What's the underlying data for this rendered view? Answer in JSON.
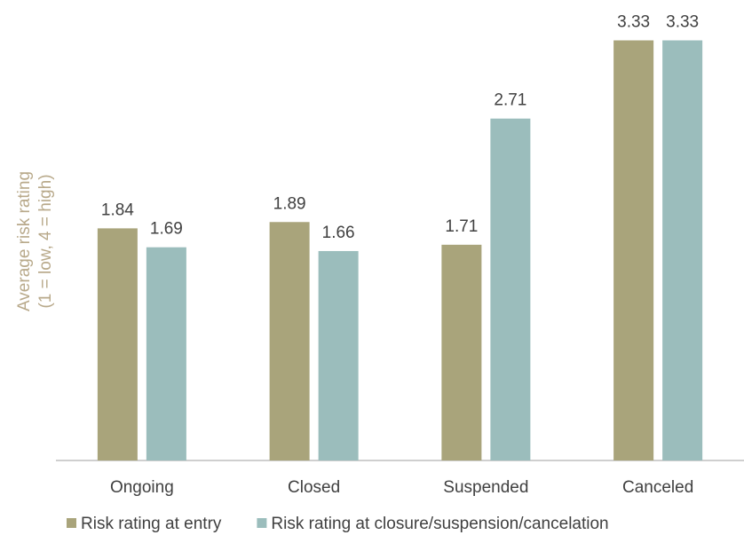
{
  "chart_data": {
    "type": "bar",
    "ylabel": [
      "Average risk rating",
      "(1 = low, 4 = high)"
    ],
    "categories": [
      "Ongoing",
      "Closed",
      "Suspended",
      "Canceled"
    ],
    "series": [
      {
        "name": "Risk rating at entry",
        "color": "#a9a47b",
        "values": [
          1.84,
          1.89,
          1.71,
          3.33
        ]
      },
      {
        "name": "Risk rating at closure/suspension/cancelation",
        "color": "#9bbdbc",
        "values": [
          1.69,
          1.66,
          2.71,
          3.33
        ]
      }
    ],
    "ylim": [
      0,
      3.65
    ]
  }
}
